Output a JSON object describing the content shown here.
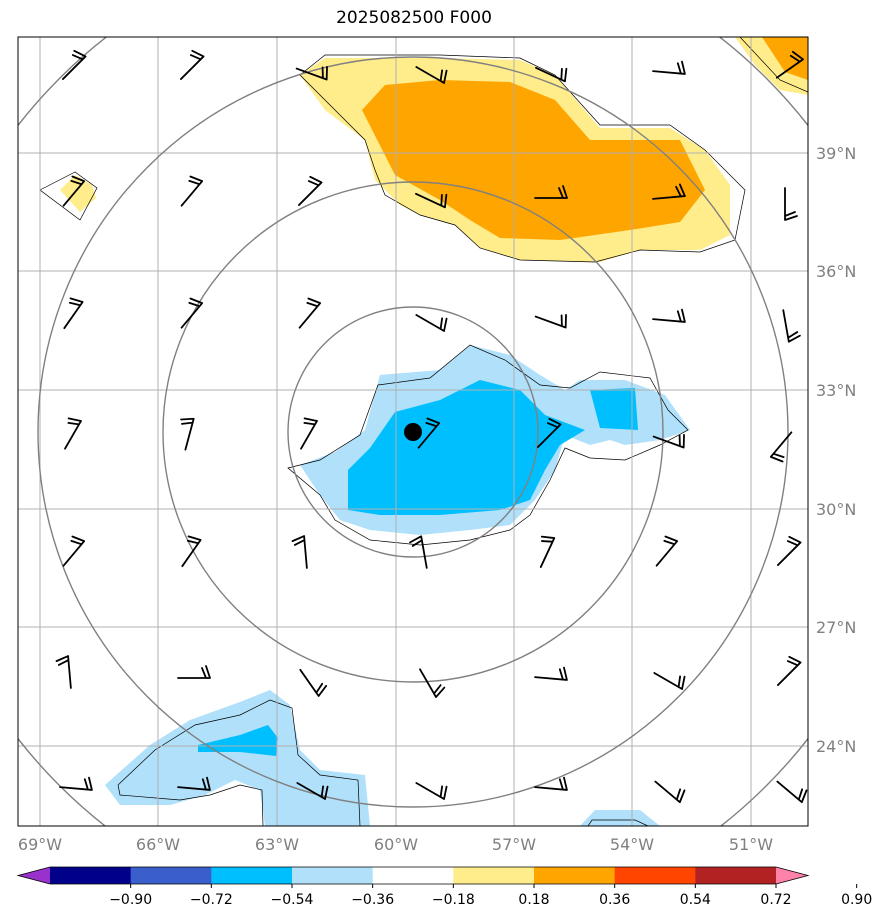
{
  "title": "2025082500 F000",
  "lat_labels": [
    "39°N",
    "36°N",
    "33°N",
    "30°N",
    "27°N",
    "24°N"
  ],
  "lon_labels": [
    "69°W",
    "66°W",
    "63°W",
    "60°W",
    "57°W",
    "54°W",
    "51°W"
  ],
  "colorbar": {
    "ticks": [
      "−0.90",
      "−0.72",
      "−0.54",
      "−0.36",
      "−0.18",
      "0.18",
      "0.36",
      "0.54",
      "0.72",
      "0.90"
    ],
    "colors": [
      "#9932cc",
      "#00008b",
      "#3a5fcd",
      "#00bfff",
      "#b0e0fa",
      "#ffffff",
      "#ffec8b",
      "#ffa500",
      "#ff4500",
      "#b22222",
      "#ff82ab"
    ]
  },
  "colors": {
    "light_blue": "#b0e0fa",
    "blue": "#00bfff",
    "light_yellow": "#ffec8b",
    "orange": "#ffa500",
    "grid": "#b0b0b0",
    "circle": "#808080"
  },
  "storm_center": {
    "lon": -59.7,
    "lat": 31.9
  }
}
